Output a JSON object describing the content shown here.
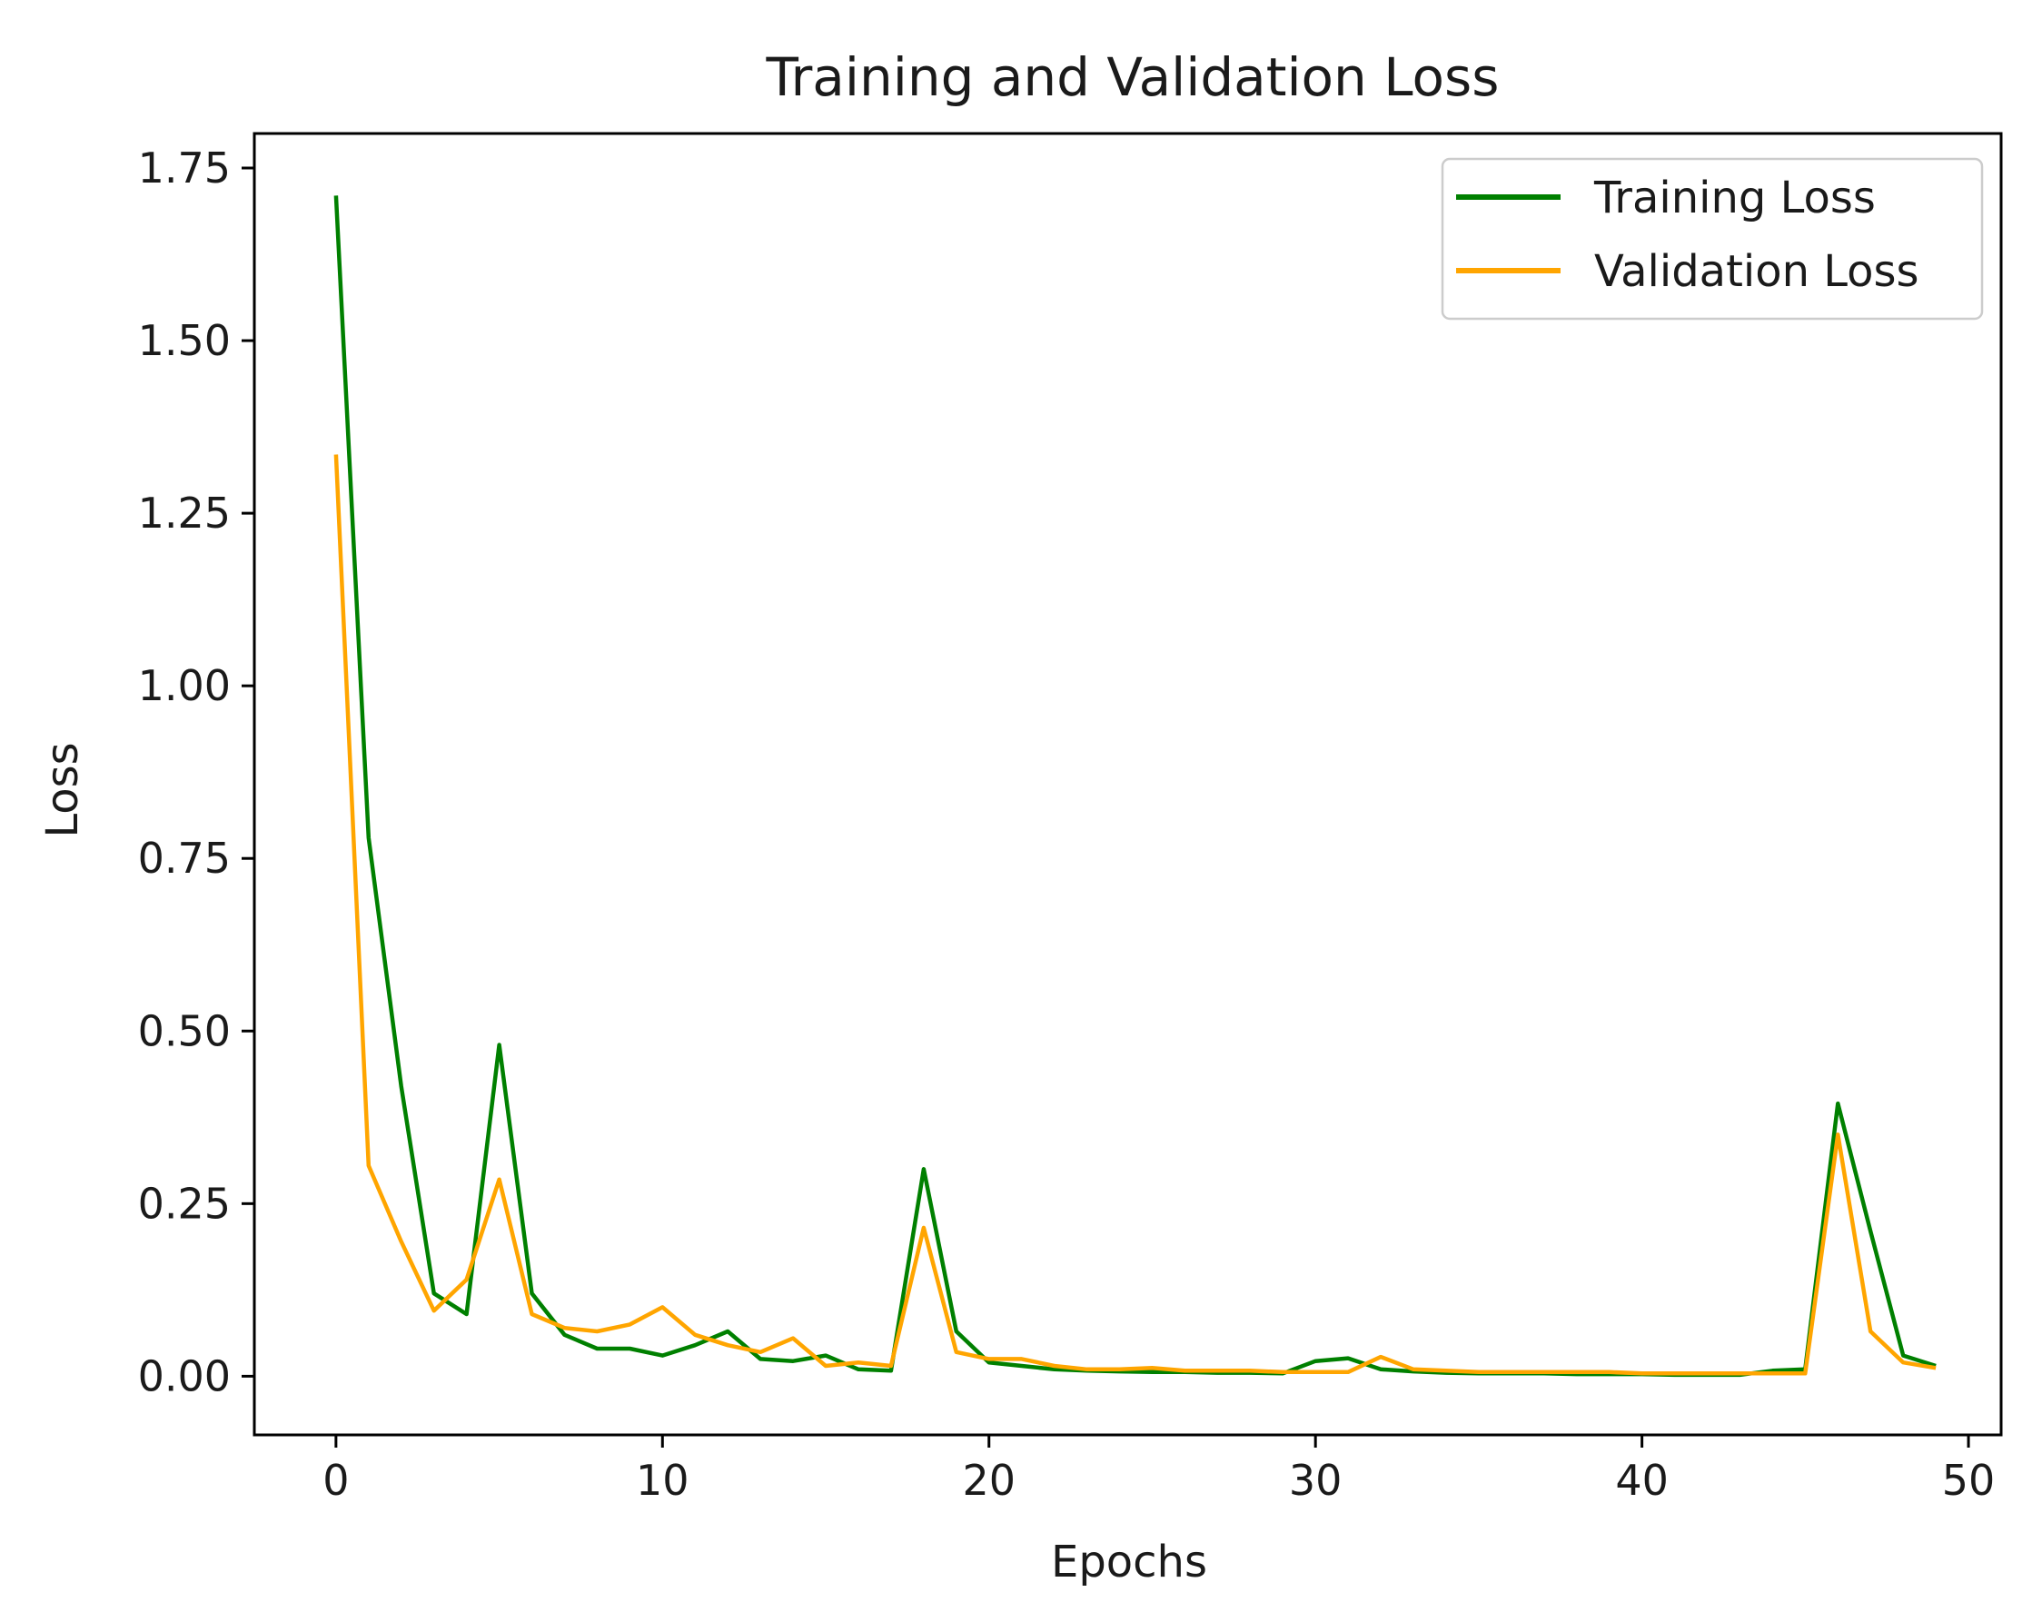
{
  "chart_data": {
    "type": "line",
    "title": "Training and Validation Loss",
    "xlabel": "Epochs",
    "ylabel": "Loss",
    "xlim": [
      -2.5,
      51
    ],
    "ylim": [
      -0.085,
      1.8
    ],
    "xticks": [
      0,
      10,
      20,
      30,
      40,
      50
    ],
    "xtick_labels": [
      "0",
      "10",
      "20",
      "30",
      "40",
      "50"
    ],
    "yticks": [
      0.0,
      0.25,
      0.5,
      0.75,
      1.0,
      1.25,
      1.5,
      1.75
    ],
    "ytick_labels": [
      "0.00",
      "0.25",
      "0.50",
      "0.75",
      "1.00",
      "1.25",
      "1.50",
      "1.75"
    ],
    "grid": false,
    "legend_position": "top-right",
    "x": [
      0,
      1,
      2,
      3,
      4,
      5,
      6,
      7,
      8,
      9,
      10,
      11,
      12,
      13,
      14,
      15,
      16,
      17,
      18,
      19,
      20,
      21,
      22,
      23,
      24,
      25,
      26,
      27,
      28,
      29,
      30,
      31,
      32,
      33,
      34,
      35,
      36,
      37,
      38,
      39,
      40,
      41,
      42,
      43,
      44,
      45,
      46,
      47,
      48,
      49
    ],
    "series": [
      {
        "name": "Training Loss",
        "color": "#008000",
        "values": [
          1.71,
          0.78,
          0.42,
          0.12,
          0.09,
          0.48,
          0.12,
          0.06,
          0.04,
          0.04,
          0.03,
          0.045,
          0.065,
          0.025,
          0.022,
          0.03,
          0.01,
          0.008,
          0.3,
          0.065,
          0.02,
          0.015,
          0.01,
          0.008,
          0.007,
          0.006,
          0.006,
          0.005,
          0.005,
          0.004,
          0.022,
          0.026,
          0.01,
          0.007,
          0.005,
          0.004,
          0.004,
          0.004,
          0.003,
          0.003,
          0.003,
          0.002,
          0.002,
          0.002,
          0.008,
          0.01,
          0.395,
          0.21,
          0.03,
          0.015
        ]
      },
      {
        "name": "Validation Loss",
        "color": "#FFA500",
        "values": [
          1.335,
          0.305,
          0.195,
          0.095,
          0.14,
          0.285,
          0.09,
          0.07,
          0.065,
          0.075,
          0.1,
          0.06,
          0.045,
          0.035,
          0.055,
          0.015,
          0.02,
          0.015,
          0.215,
          0.035,
          0.025,
          0.025,
          0.015,
          0.01,
          0.01,
          0.012,
          0.008,
          0.008,
          0.008,
          0.006,
          0.006,
          0.006,
          0.028,
          0.01,
          0.008,
          0.006,
          0.006,
          0.006,
          0.006,
          0.006,
          0.004,
          0.004,
          0.004,
          0.004,
          0.004,
          0.004,
          0.35,
          0.065,
          0.02,
          0.012
        ]
      }
    ]
  }
}
